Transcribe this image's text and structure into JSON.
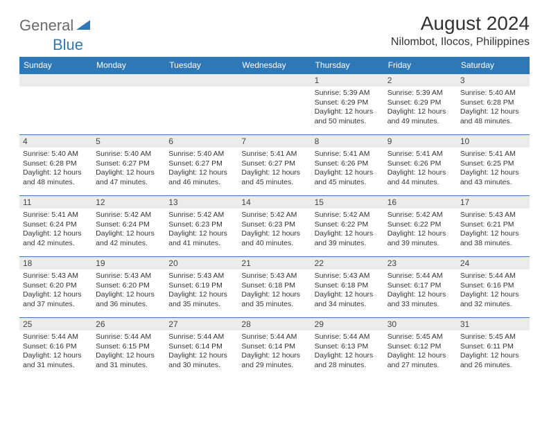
{
  "logo": {
    "text1": "General",
    "text2": "Blue"
  },
  "title": "August 2024",
  "location": "Nilombot, Ilocos, Philippines",
  "colors": {
    "header_bg": "#2f78b8",
    "header_text": "#ffffff",
    "daynum_bg": "#ececec",
    "border": "#2f78b8",
    "logo_gray": "#6a6a6a",
    "logo_blue": "#2f78b8"
  },
  "day_names": [
    "Sunday",
    "Monday",
    "Tuesday",
    "Wednesday",
    "Thursday",
    "Friday",
    "Saturday"
  ],
  "leading_blanks": 4,
  "days": [
    {
      "n": "1",
      "sr": "5:39 AM",
      "ss": "6:29 PM",
      "dl": "12 hours and 50 minutes."
    },
    {
      "n": "2",
      "sr": "5:39 AM",
      "ss": "6:29 PM",
      "dl": "12 hours and 49 minutes."
    },
    {
      "n": "3",
      "sr": "5:40 AM",
      "ss": "6:28 PM",
      "dl": "12 hours and 48 minutes."
    },
    {
      "n": "4",
      "sr": "5:40 AM",
      "ss": "6:28 PM",
      "dl": "12 hours and 48 minutes."
    },
    {
      "n": "5",
      "sr": "5:40 AM",
      "ss": "6:27 PM",
      "dl": "12 hours and 47 minutes."
    },
    {
      "n": "6",
      "sr": "5:40 AM",
      "ss": "6:27 PM",
      "dl": "12 hours and 46 minutes."
    },
    {
      "n": "7",
      "sr": "5:41 AM",
      "ss": "6:27 PM",
      "dl": "12 hours and 45 minutes."
    },
    {
      "n": "8",
      "sr": "5:41 AM",
      "ss": "6:26 PM",
      "dl": "12 hours and 45 minutes."
    },
    {
      "n": "9",
      "sr": "5:41 AM",
      "ss": "6:26 PM",
      "dl": "12 hours and 44 minutes."
    },
    {
      "n": "10",
      "sr": "5:41 AM",
      "ss": "6:25 PM",
      "dl": "12 hours and 43 minutes."
    },
    {
      "n": "11",
      "sr": "5:41 AM",
      "ss": "6:24 PM",
      "dl": "12 hours and 42 minutes."
    },
    {
      "n": "12",
      "sr": "5:42 AM",
      "ss": "6:24 PM",
      "dl": "12 hours and 42 minutes."
    },
    {
      "n": "13",
      "sr": "5:42 AM",
      "ss": "6:23 PM",
      "dl": "12 hours and 41 minutes."
    },
    {
      "n": "14",
      "sr": "5:42 AM",
      "ss": "6:23 PM",
      "dl": "12 hours and 40 minutes."
    },
    {
      "n": "15",
      "sr": "5:42 AM",
      "ss": "6:22 PM",
      "dl": "12 hours and 39 minutes."
    },
    {
      "n": "16",
      "sr": "5:42 AM",
      "ss": "6:22 PM",
      "dl": "12 hours and 39 minutes."
    },
    {
      "n": "17",
      "sr": "5:43 AM",
      "ss": "6:21 PM",
      "dl": "12 hours and 38 minutes."
    },
    {
      "n": "18",
      "sr": "5:43 AM",
      "ss": "6:20 PM",
      "dl": "12 hours and 37 minutes."
    },
    {
      "n": "19",
      "sr": "5:43 AM",
      "ss": "6:20 PM",
      "dl": "12 hours and 36 minutes."
    },
    {
      "n": "20",
      "sr": "5:43 AM",
      "ss": "6:19 PM",
      "dl": "12 hours and 35 minutes."
    },
    {
      "n": "21",
      "sr": "5:43 AM",
      "ss": "6:18 PM",
      "dl": "12 hours and 35 minutes."
    },
    {
      "n": "22",
      "sr": "5:43 AM",
      "ss": "6:18 PM",
      "dl": "12 hours and 34 minutes."
    },
    {
      "n": "23",
      "sr": "5:44 AM",
      "ss": "6:17 PM",
      "dl": "12 hours and 33 minutes."
    },
    {
      "n": "24",
      "sr": "5:44 AM",
      "ss": "6:16 PM",
      "dl": "12 hours and 32 minutes."
    },
    {
      "n": "25",
      "sr": "5:44 AM",
      "ss": "6:16 PM",
      "dl": "12 hours and 31 minutes."
    },
    {
      "n": "26",
      "sr": "5:44 AM",
      "ss": "6:15 PM",
      "dl": "12 hours and 31 minutes."
    },
    {
      "n": "27",
      "sr": "5:44 AM",
      "ss": "6:14 PM",
      "dl": "12 hours and 30 minutes."
    },
    {
      "n": "28",
      "sr": "5:44 AM",
      "ss": "6:14 PM",
      "dl": "12 hours and 29 minutes."
    },
    {
      "n": "29",
      "sr": "5:44 AM",
      "ss": "6:13 PM",
      "dl": "12 hours and 28 minutes."
    },
    {
      "n": "30",
      "sr": "5:45 AM",
      "ss": "6:12 PM",
      "dl": "12 hours and 27 minutes."
    },
    {
      "n": "31",
      "sr": "5:45 AM",
      "ss": "6:11 PM",
      "dl": "12 hours and 26 minutes."
    }
  ],
  "labels": {
    "sunrise": "Sunrise:",
    "sunset": "Sunset:",
    "daylight": "Daylight:"
  }
}
